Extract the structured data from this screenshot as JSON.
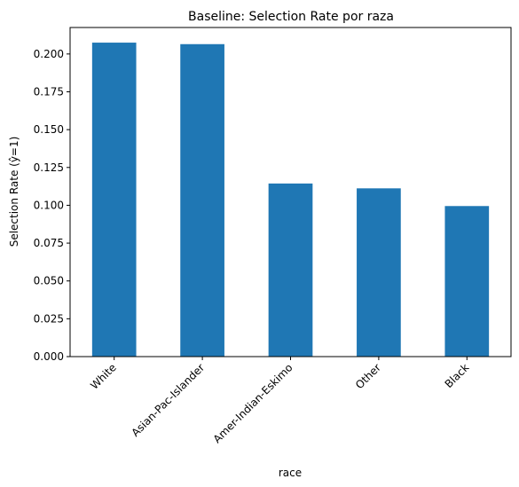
{
  "chart_data": {
    "type": "bar",
    "title": "Baseline: Selection Rate por raza",
    "xlabel": "race",
    "ylabel": "Selection Rate (ŷ=1)",
    "categories": [
      "White",
      "Asian-Pac-Islander",
      "Amer-Indian-Eskimo",
      "Other",
      "Black"
    ],
    "values": [
      0.2075,
      0.2065,
      0.1144,
      0.1112,
      0.0995
    ],
    "ylim": [
      0,
      0.2175
    ],
    "yticks": [
      "0.000",
      "0.025",
      "0.050",
      "0.075",
      "0.100",
      "0.125",
      "0.150",
      "0.175",
      "0.200"
    ],
    "bar_color": "#1f77b4",
    "grid": false,
    "legend": "none"
  }
}
